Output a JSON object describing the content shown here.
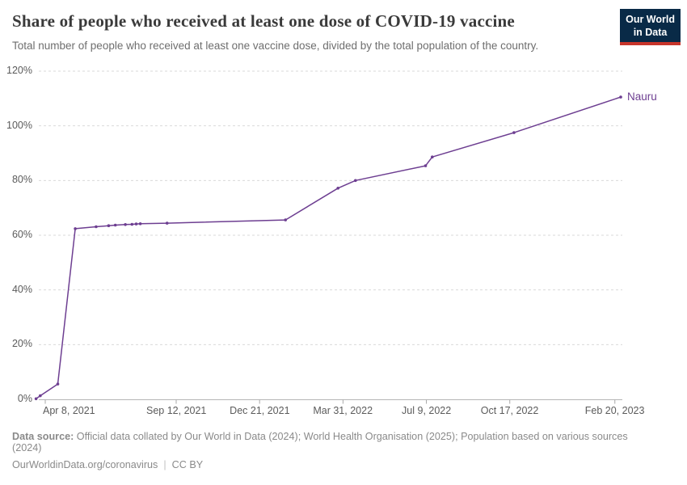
{
  "branding": {
    "logo": {
      "line1": "Our World",
      "line2": "in Data",
      "bg_color": "#092a47",
      "accent_color": "#c7352b"
    }
  },
  "chart_data": {
    "type": "line",
    "title": "Share of people who received at least one dose of COVID-19 vaccine",
    "subtitle": "Total number of people who received at least one vaccine dose, divided by the total population of the country.",
    "unit": "%",
    "ylim": [
      0,
      120
    ],
    "grid": "horizontal-dashed",
    "legend_position": "end-of-line-label",
    "y_ticks": [
      {
        "value": 0,
        "label": "0%"
      },
      {
        "value": 20,
        "label": "20%"
      },
      {
        "value": 40,
        "label": "40%"
      },
      {
        "value": 60,
        "label": "60%"
      },
      {
        "value": 80,
        "label": "80%"
      },
      {
        "value": 100,
        "label": "100%"
      },
      {
        "value": 120,
        "label": "120%"
      }
    ],
    "x_ticks": [
      {
        "date": "2021-04-08",
        "label": "Apr 8, 2021"
      },
      {
        "date": "2021-09-12",
        "label": "Sep 12, 2021"
      },
      {
        "date": "2021-12-21",
        "label": "Dec 21, 2021"
      },
      {
        "date": "2022-03-31",
        "label": "Mar 31, 2022"
      },
      {
        "date": "2022-07-09",
        "label": "Jul 9, 2022"
      },
      {
        "date": "2022-10-17",
        "label": "Oct 17, 2022"
      },
      {
        "date": "2023-02-20",
        "label": "Feb 20, 2023"
      }
    ],
    "series": [
      {
        "name": "Nauru",
        "color": "#6d3e91",
        "points": [
          {
            "date": "2021-03-28",
            "value": 0.2
          },
          {
            "date": "2021-04-02",
            "value": 1.3
          },
          {
            "date": "2021-04-23",
            "value": 5.6
          },
          {
            "date": "2021-05-14",
            "value": 62.4
          },
          {
            "date": "2021-06-08",
            "value": 63.1
          },
          {
            "date": "2021-06-23",
            "value": 63.5
          },
          {
            "date": "2021-07-01",
            "value": 63.7
          },
          {
            "date": "2021-07-13",
            "value": 63.9
          },
          {
            "date": "2021-07-21",
            "value": 64.0
          },
          {
            "date": "2021-07-26",
            "value": 64.1
          },
          {
            "date": "2021-07-31",
            "value": 64.2
          },
          {
            "date": "2021-09-01",
            "value": 64.4
          },
          {
            "date": "2022-01-21",
            "value": 65.6
          },
          {
            "date": "2022-03-25",
            "value": 77.2
          },
          {
            "date": "2022-04-15",
            "value": 80.0
          },
          {
            "date": "2022-07-08",
            "value": 85.4
          },
          {
            "date": "2022-07-16",
            "value": 88.6
          },
          {
            "date": "2022-10-22",
            "value": 97.5
          },
          {
            "date": "2023-02-27",
            "value": 110.5
          }
        ]
      }
    ]
  },
  "footer": {
    "source_label": "Data source:",
    "source_text": " Official data collated by Our World in Data (2024); World Health Organisation (2025); Population based on various sources",
    "source_text_wrap": "(2024)",
    "link": "OurWorldinData.org/coronavirus",
    "separator": "|",
    "license": "CC BY"
  }
}
